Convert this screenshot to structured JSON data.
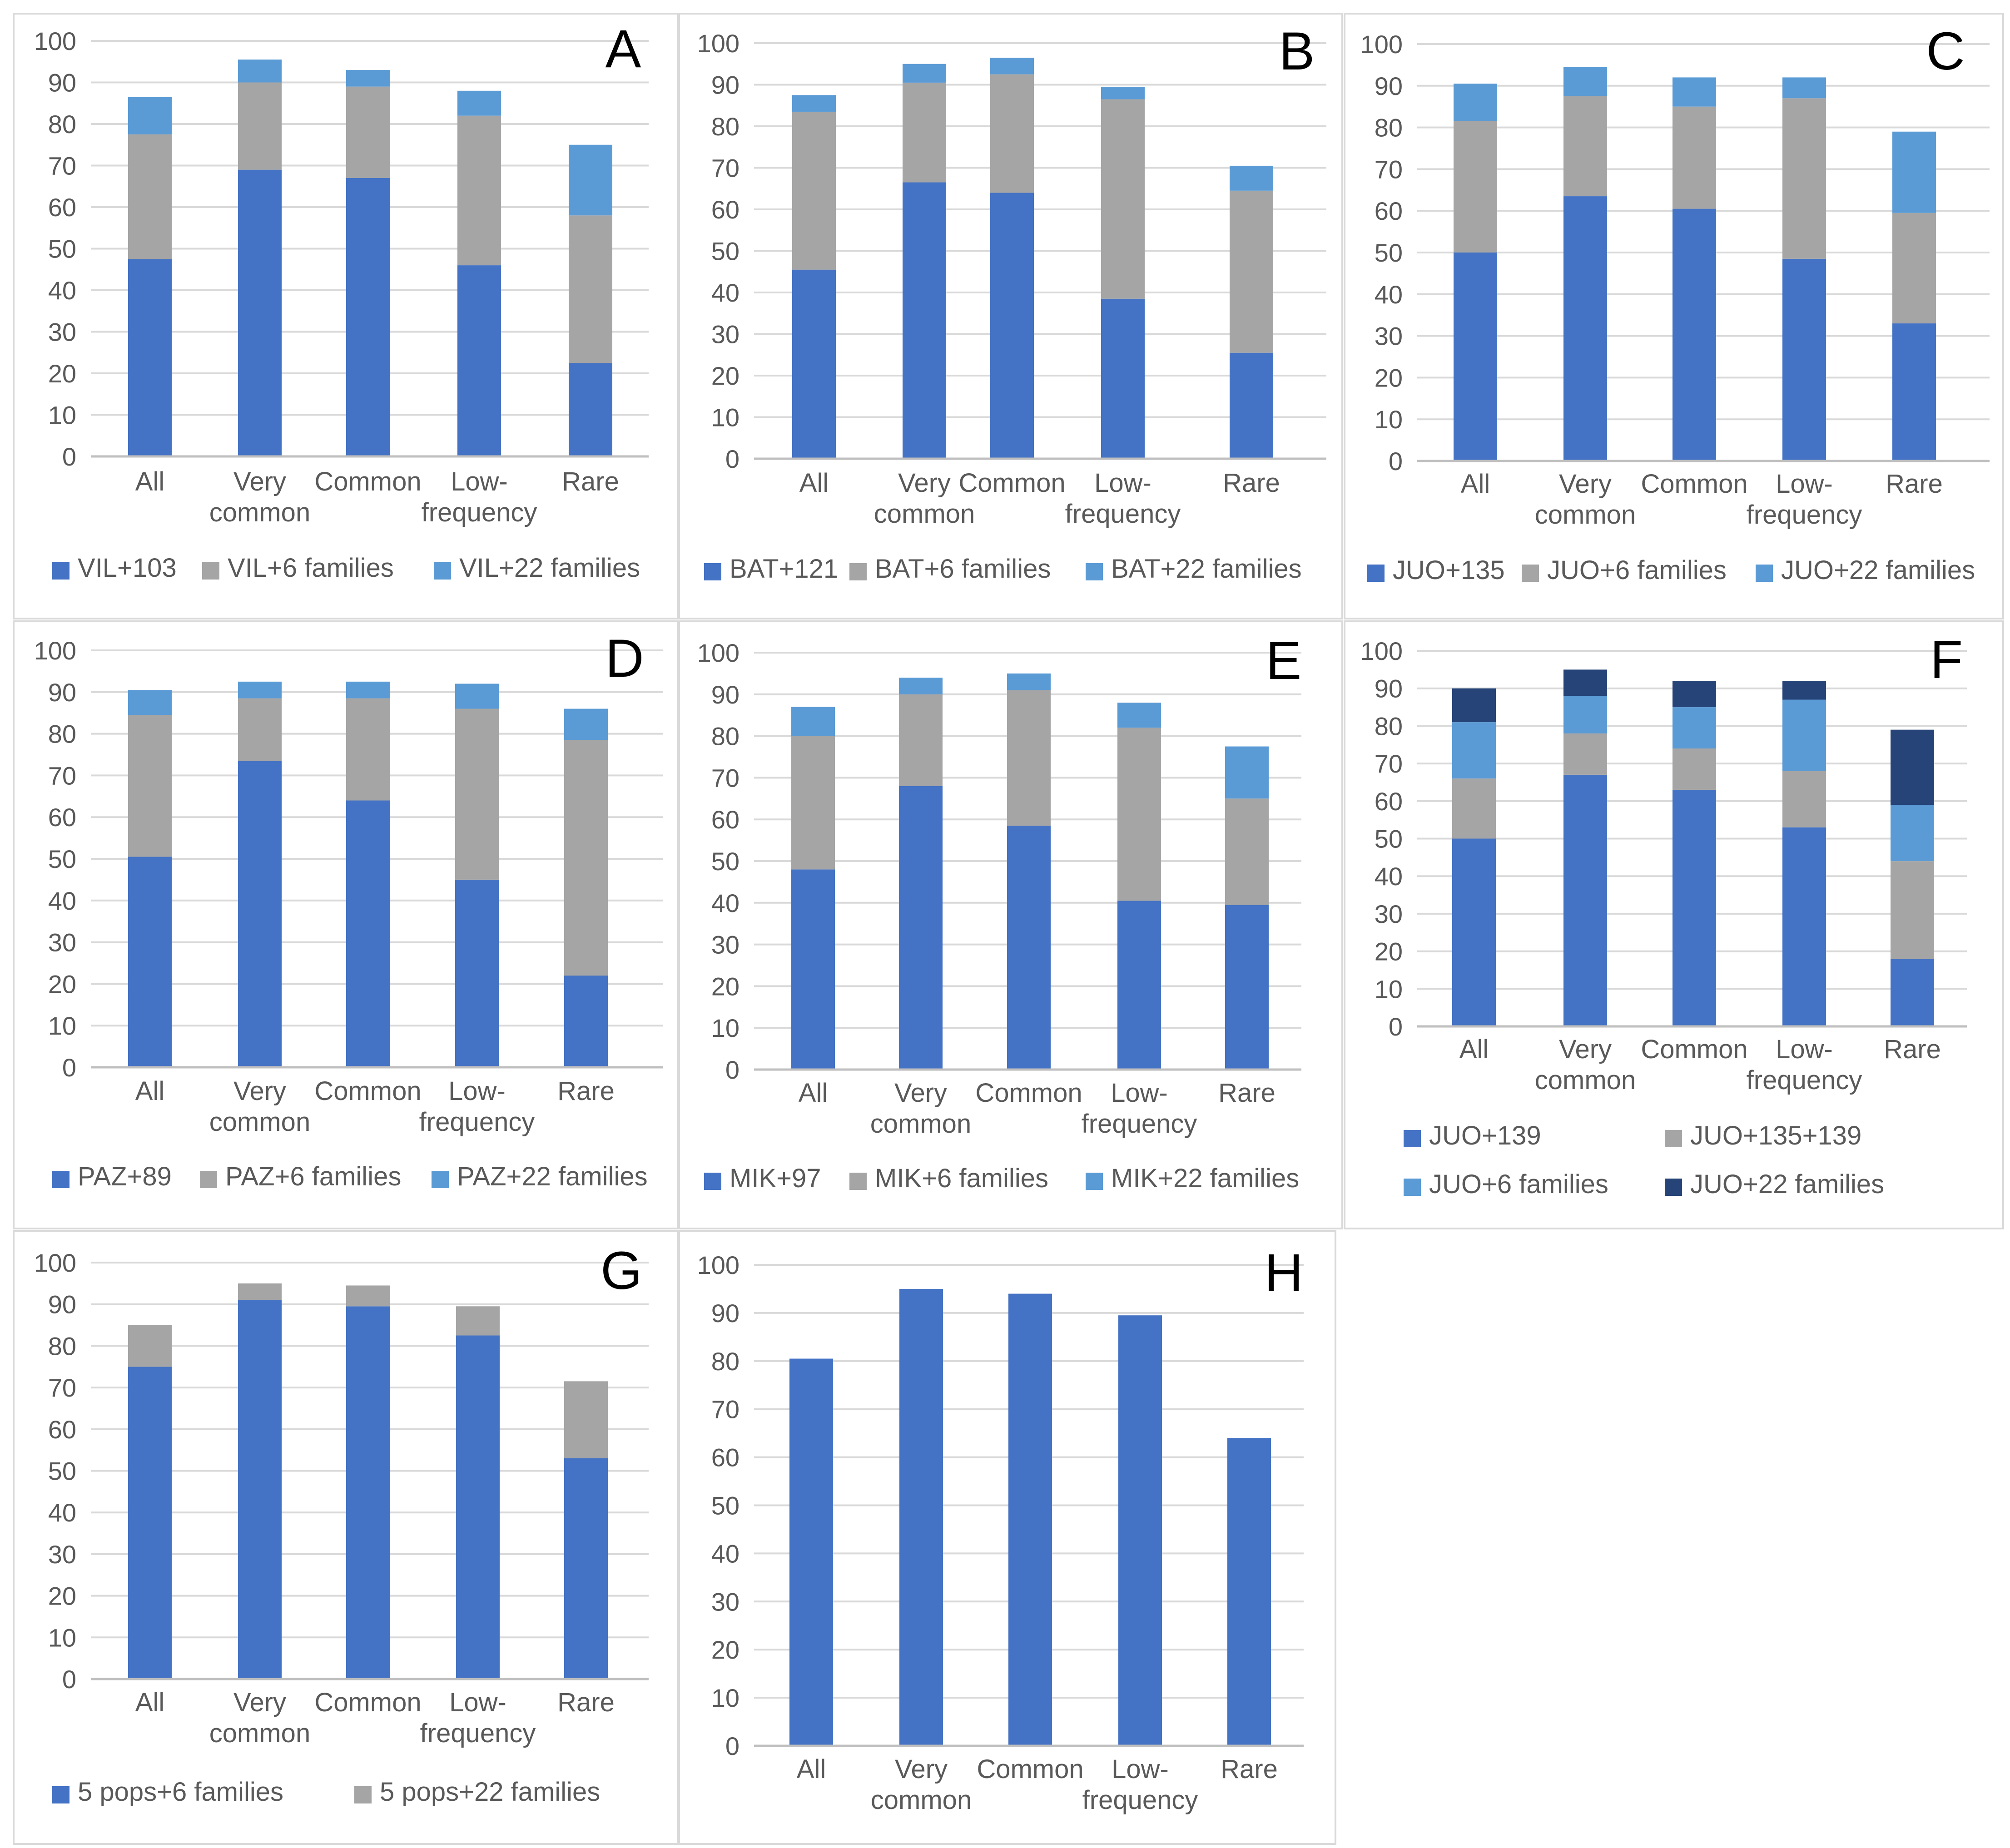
{
  "chart_data": [
    {
      "panel": "A",
      "type": "bar",
      "stacked": true,
      "categories": [
        "All",
        "Very common",
        "Common",
        "Low-frequency",
        "Rare"
      ],
      "series": [
        {
          "name": "VIL+103",
          "color": "#4472C4",
          "values": [
            47.5,
            69,
            67,
            46,
            22.5
          ]
        },
        {
          "name": "VIL+6 families",
          "color": "#A5A5A5",
          "values": [
            30,
            21,
            22,
            36,
            35.5
          ]
        },
        {
          "name": "VIL+22 families",
          "color": "#5B9BD5",
          "values": [
            9,
            5.5,
            4,
            6,
            17
          ]
        }
      ],
      "ylim": [
        0,
        100
      ],
      "yticks": [
        0,
        10,
        20,
        30,
        40,
        50,
        60,
        70,
        80,
        90,
        100
      ],
      "grid": true,
      "legend": "bottom"
    },
    {
      "panel": "B",
      "type": "bar",
      "stacked": true,
      "categories": [
        "All",
        "Very common",
        "Common",
        "Low-frequency",
        "Rare"
      ],
      "series": [
        {
          "name": "BAT+121",
          "color": "#4472C4",
          "values": [
            45.5,
            66.5,
            64,
            38.5,
            25.5
          ]
        },
        {
          "name": "BAT+6 families",
          "color": "#A5A5A5",
          "values": [
            38,
            24,
            28.5,
            48,
            39
          ]
        },
        {
          "name": "BAT+22 families",
          "color": "#5B9BD5",
          "values": [
            4,
            4.5,
            4,
            3,
            6
          ]
        }
      ],
      "ylim": [
        0,
        100
      ],
      "yticks": [
        0,
        10,
        20,
        30,
        40,
        50,
        60,
        70,
        80,
        90,
        100
      ],
      "grid": true,
      "legend": "bottom"
    },
    {
      "panel": "C",
      "type": "bar",
      "stacked": true,
      "categories": [
        "All",
        "Very common",
        "Common",
        "Low-frequency",
        "Rare"
      ],
      "series": [
        {
          "name": "JUO+135",
          "color": "#4472C4",
          "values": [
            50,
            63.5,
            60.5,
            48.5,
            33
          ]
        },
        {
          "name": "JUO+6 families",
          "color": "#A5A5A5",
          "values": [
            31.5,
            24,
            24.5,
            38.5,
            26.5
          ]
        },
        {
          "name": "JUO+22 families",
          "color": "#5B9BD5",
          "values": [
            9,
            7,
            7,
            5,
            19.5
          ]
        }
      ],
      "ylim": [
        0,
        100
      ],
      "yticks": [
        0,
        10,
        20,
        30,
        40,
        50,
        60,
        70,
        80,
        90,
        100
      ],
      "grid": true,
      "legend": "bottom"
    },
    {
      "panel": "D",
      "type": "bar",
      "stacked": true,
      "categories": [
        "All",
        "Very common",
        "Common",
        "Low-frequency",
        "Rare"
      ],
      "series": [
        {
          "name": "PAZ+89",
          "color": "#4472C4",
          "values": [
            50.5,
            73.5,
            64,
            45,
            22
          ]
        },
        {
          "name": "PAZ+6 families",
          "color": "#A5A5A5",
          "values": [
            34,
            15,
            24.5,
            41,
            56.5
          ]
        },
        {
          "name": "PAZ+22 families",
          "color": "#5B9BD5",
          "values": [
            6,
            4,
            4,
            6,
            7.5
          ]
        }
      ],
      "ylim": [
        0,
        100
      ],
      "yticks": [
        0,
        10,
        20,
        30,
        40,
        50,
        60,
        70,
        80,
        90,
        100
      ],
      "grid": true,
      "legend": "bottom"
    },
    {
      "panel": "E",
      "type": "bar",
      "stacked": true,
      "categories": [
        "All",
        "Very common",
        "Common",
        "Low-frequency",
        "Rare"
      ],
      "series": [
        {
          "name": "MIK+97",
          "color": "#4472C4",
          "values": [
            48,
            68,
            58.5,
            40.5,
            39.5
          ]
        },
        {
          "name": "MIK+6 families",
          "color": "#A5A5A5",
          "values": [
            32,
            22,
            32.5,
            41.5,
            25.5
          ]
        },
        {
          "name": "MIK+22 families",
          "color": "#5B9BD5",
          "values": [
            7,
            4,
            4,
            6,
            12.5
          ]
        }
      ],
      "ylim": [
        0,
        100
      ],
      "yticks": [
        0,
        10,
        20,
        30,
        40,
        50,
        60,
        70,
        80,
        90,
        100
      ],
      "grid": true,
      "legend": "bottom"
    },
    {
      "panel": "F",
      "type": "bar",
      "stacked": true,
      "categories": [
        "All",
        "Very common",
        "Common",
        "Low-frequency",
        "Rare"
      ],
      "series": [
        {
          "name": "JUO+139",
          "color": "#4472C4",
          "values": [
            50,
            67,
            63,
            53,
            18
          ]
        },
        {
          "name": "JUO+135+139",
          "color": "#A5A5A5",
          "values": [
            16,
            11,
            11,
            15,
            26
          ]
        },
        {
          "name": "JUO+6 families",
          "color": "#5B9BD5",
          "values": [
            15,
            10,
            11,
            19,
            15
          ]
        },
        {
          "name": "JUO+22 families",
          "color": "#264478",
          "values": [
            9,
            7,
            7,
            5,
            20
          ]
        }
      ],
      "ylim": [
        0,
        100
      ],
      "yticks": [
        0,
        10,
        20,
        30,
        40,
        50,
        60,
        70,
        80,
        90,
        100
      ],
      "grid": true,
      "legend": "bottom"
    },
    {
      "panel": "G",
      "type": "bar",
      "stacked": true,
      "categories": [
        "All",
        "Very common",
        "Common",
        "Low-frequency",
        "Rare"
      ],
      "series": [
        {
          "name": "5 pops+6 families",
          "color": "#4472C4",
          "values": [
            75,
            91,
            89.5,
            82.5,
            53
          ]
        },
        {
          "name": "5 pops+22 families",
          "color": "#A5A5A5",
          "values": [
            10,
            4,
            5,
            7,
            18.5
          ]
        }
      ],
      "ylim": [
        0,
        100
      ],
      "yticks": [
        0,
        10,
        20,
        30,
        40,
        50,
        60,
        70,
        80,
        90,
        100
      ],
      "grid": true,
      "legend": "bottom"
    },
    {
      "panel": "H",
      "type": "bar",
      "stacked": true,
      "categories": [
        "All",
        "Very common",
        "Common",
        "Low-frequency",
        "Rare"
      ],
      "series": [
        {
          "name": "",
          "color": "#4472C4",
          "values": [
            80.5,
            95,
            94,
            89.5,
            64
          ]
        }
      ],
      "ylim": [
        0,
        100
      ],
      "yticks": [
        0,
        10,
        20,
        30,
        40,
        50,
        60,
        70,
        80,
        90,
        100
      ],
      "grid": true,
      "legend": "none"
    }
  ]
}
